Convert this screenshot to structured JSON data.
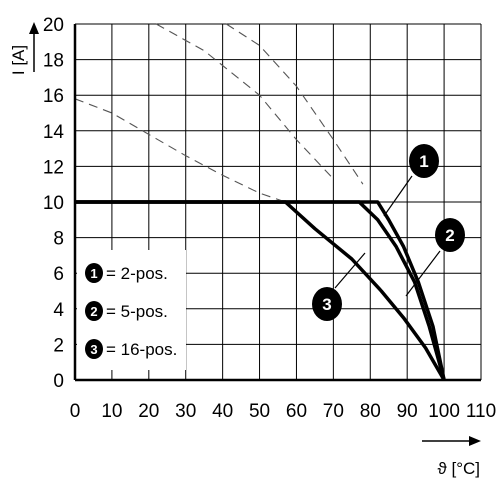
{
  "chart_data": {
    "type": "line",
    "xlabel": "ϑ [°C]",
    "ylabel": "I [A]",
    "xlim": [
      0,
      110
    ],
    "ylim": [
      0,
      20
    ],
    "x_ticks": [
      0,
      10,
      20,
      30,
      40,
      50,
      60,
      70,
      80,
      90,
      100,
      110
    ],
    "y_ticks": [
      0,
      2,
      4,
      6,
      8,
      10,
      12,
      14,
      16,
      18,
      20
    ],
    "grid": true,
    "series": [
      {
        "name": "1",
        "solid": [
          [
            0,
            10
          ],
          [
            82,
            10
          ],
          [
            85,
            9
          ],
          [
            89,
            7.5
          ],
          [
            93,
            5.5
          ],
          [
            97,
            3
          ],
          [
            100,
            0
          ]
        ],
        "dashed": [
          [
            41,
            20
          ],
          [
            50,
            18.8
          ],
          [
            60,
            16.5
          ],
          [
            70,
            13.5
          ],
          [
            78,
            11
          ]
        ]
      },
      {
        "name": "2",
        "solid": [
          [
            0,
            10
          ],
          [
            77,
            10
          ],
          [
            82,
            9
          ],
          [
            87,
            7.5
          ],
          [
            92,
            5.5
          ],
          [
            96,
            3
          ],
          [
            100,
            0
          ]
        ],
        "dashed": [
          [
            22,
            20
          ],
          [
            35,
            18.5
          ],
          [
            50,
            16
          ],
          [
            60,
            13.5
          ],
          [
            70,
            11.3
          ]
        ]
      },
      {
        "name": "3",
        "solid": [
          [
            0,
            10
          ],
          [
            57,
            10
          ],
          [
            65,
            8.5
          ],
          [
            75,
            6.8
          ],
          [
            83,
            5
          ],
          [
            89,
            3.5
          ],
          [
            95,
            1.8
          ],
          [
            100,
            0
          ]
        ],
        "dashed": [
          [
            0,
            15.8
          ],
          [
            10,
            15
          ],
          [
            20,
            13.8
          ],
          [
            30,
            12.6
          ],
          [
            40,
            11.5
          ],
          [
            50,
            10.5
          ],
          [
            57,
            10
          ]
        ]
      }
    ],
    "legend": {
      "placement": "bottom-left",
      "entries": [
        {
          "marker": "1",
          "label": "= 2-pos."
        },
        {
          "marker": "2",
          "label": "= 5-pos."
        },
        {
          "marker": "3",
          "label": "= 16-pos."
        }
      ]
    }
  }
}
